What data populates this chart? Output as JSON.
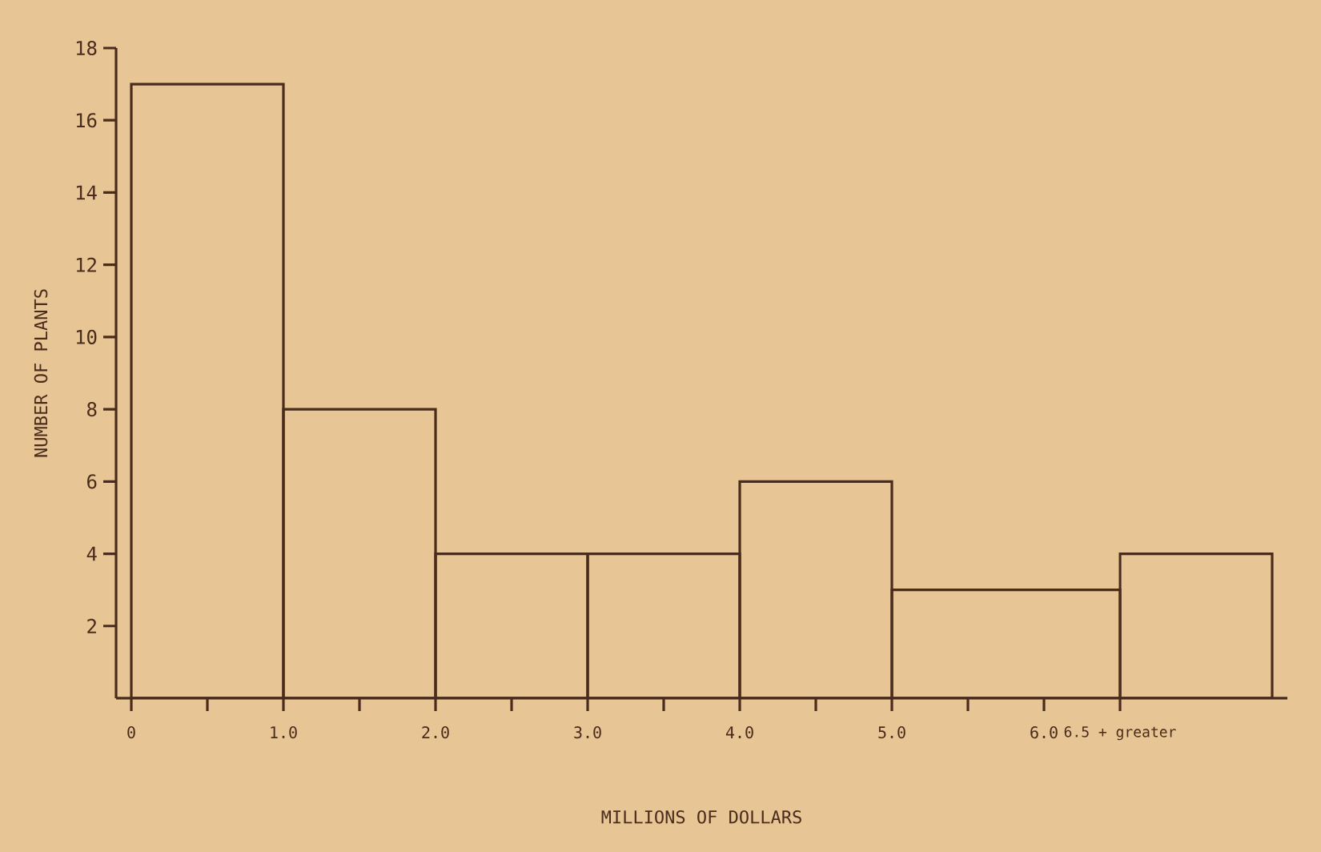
{
  "chart_data": {
    "type": "histogram",
    "xlabel": "MILLIONS OF DOLLARS",
    "ylabel": "NUMBER OF PLANTS",
    "bins": [
      0,
      1,
      2,
      3,
      4,
      5,
      6.5,
      7.5
    ],
    "values": [
      17,
      8,
      4,
      4,
      6,
      3,
      4
    ],
    "color": "#4a2c1c",
    "xlim": [
      -0.1,
      7.6
    ],
    "ylim": [
      0,
      18
    ],
    "xticks": [
      0,
      {
        "value": 0.5,
        "label": null
      },
      {
        "value": 1,
        "label": "1.0"
      },
      {
        "value": 1.5,
        "label": null
      },
      {
        "value": 2,
        "label": "2.0"
      },
      {
        "value": 2.5,
        "label": null
      },
      {
        "value": 3,
        "label": "3.0"
      },
      {
        "value": 3.5,
        "label": null
      },
      {
        "value": 4,
        "label": "4.0"
      },
      {
        "value": 4.5,
        "label": null
      },
      {
        "value": 5,
        "label": "5.0"
      },
      {
        "value": 5.5,
        "label": null
      },
      {
        "value": 6,
        "label": "6.0"
      },
      {
        "value": 6.5,
        "label": "6.5 + greater"
      }
    ],
    "yticks": [
      2,
      4,
      6,
      8,
      10,
      12,
      14,
      16,
      18
    ],
    "grid": false
  }
}
